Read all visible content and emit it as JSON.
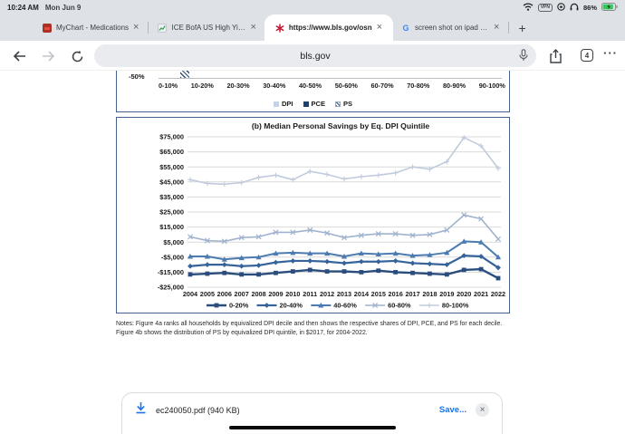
{
  "status_bar": {
    "time": "10:24 AM",
    "date": "Mon Jun 9",
    "vpn": "VPN",
    "battery_pct": "86%"
  },
  "tabs": [
    {
      "title": "MyChart - Medications"
    },
    {
      "title": "ICE BofA US High Yield I"
    },
    {
      "title": "https://www.bls.gov/osn",
      "active": true
    },
    {
      "title": "screen shot on ipad - G"
    }
  ],
  "toolbar": {
    "url": "bls.gov",
    "tab_count": "4"
  },
  "figure": {
    "chart_a": {
      "y_label": "-50%",
      "categories": [
        "0-10%",
        "10-20%",
        "20-30%",
        "30-40%",
        "40-50%",
        "50-60%",
        "60-70%",
        "70-80%",
        "80-90%",
        "90-100%"
      ],
      "legend": [
        "DPI",
        "PCE",
        "PS"
      ]
    }
  },
  "chart_data": {
    "type": "line",
    "title": "(b) Median Personal Savings by Eq. DPI Quintile",
    "x": [
      "2004",
      "2005",
      "2006",
      "2007",
      "2008",
      "2009",
      "2010",
      "2011",
      "2012",
      "2013",
      "2014",
      "2015",
      "2016",
      "2017",
      "2018",
      "2019",
      "2020",
      "2021",
      "2022"
    ],
    "ylim": [
      -25000,
      75000
    ],
    "ytick_step": 10000,
    "grid": true,
    "legend_position": "bottom",
    "y_format": "dollars",
    "series": [
      {
        "name": "0-20%",
        "marker": "square",
        "color": "#2a4d7e",
        "width": 2.4,
        "values": [
          -16500,
          -16000,
          -15500,
          -16500,
          -16500,
          -15500,
          -14500,
          -13500,
          -14500,
          -14500,
          -15000,
          -14000,
          -15000,
          -15500,
          -16000,
          -16500,
          -13500,
          -13000,
          -19000
        ]
      },
      {
        "name": "20-40%",
        "marker": "diamond",
        "color": "#35639a",
        "width": 2.2,
        "values": [
          -11000,
          -10000,
          -10000,
          -11000,
          -10500,
          -8500,
          -7500,
          -7500,
          -8000,
          -9000,
          -8000,
          -8000,
          -7500,
          -9000,
          -9500,
          -10000,
          -4000,
          -4500,
          -12000
        ]
      },
      {
        "name": "40-60%",
        "marker": "triangle",
        "color": "#4d7bb0",
        "width": 2.0,
        "values": [
          -4500,
          -4500,
          -6500,
          -5500,
          -5000,
          -2500,
          -2000,
          -2500,
          -2500,
          -4500,
          -2500,
          -3000,
          -2500,
          -4000,
          -3500,
          -2000,
          5500,
          5000,
          -5000
        ]
      },
      {
        "name": "60-80%",
        "marker": "x",
        "color": "#9fb2ce",
        "width": 1.6,
        "values": [
          8500,
          6000,
          5500,
          8000,
          8500,
          11500,
          11500,
          13000,
          11000,
          8000,
          9500,
          10500,
          10500,
          9500,
          10000,
          13000,
          23000,
          20500,
          7000
        ]
      },
      {
        "name": "80-100%",
        "marker": "plus",
        "color": "#c0cbdd",
        "width": 1.6,
        "values": [
          46500,
          44000,
          43500,
          44500,
          48000,
          49500,
          46500,
          52000,
          50000,
          47000,
          48500,
          49500,
          51000,
          55000,
          53500,
          58500,
          74500,
          69000,
          54000
        ]
      }
    ]
  },
  "notes_line1": "Notes: Figure 4a ranks all households by equivalized DPI decile and then shows the respective shares of DPI, PCE, and PS for each decile.",
  "notes_line2": "Figure 4b shows the distribution of PS by equivalized DPI quintile, in $2017, for 2004-2022.",
  "download_bar": {
    "filename": "ec240050.pdf (940 KB)",
    "save_label": "Save...",
    "close_glyph": "×"
  },
  "colors": {
    "accent_blue": "#1a73e8",
    "chart_border": "#44618c",
    "grid": "#d9d9d9",
    "chrome_gray": "#dee1e6"
  }
}
